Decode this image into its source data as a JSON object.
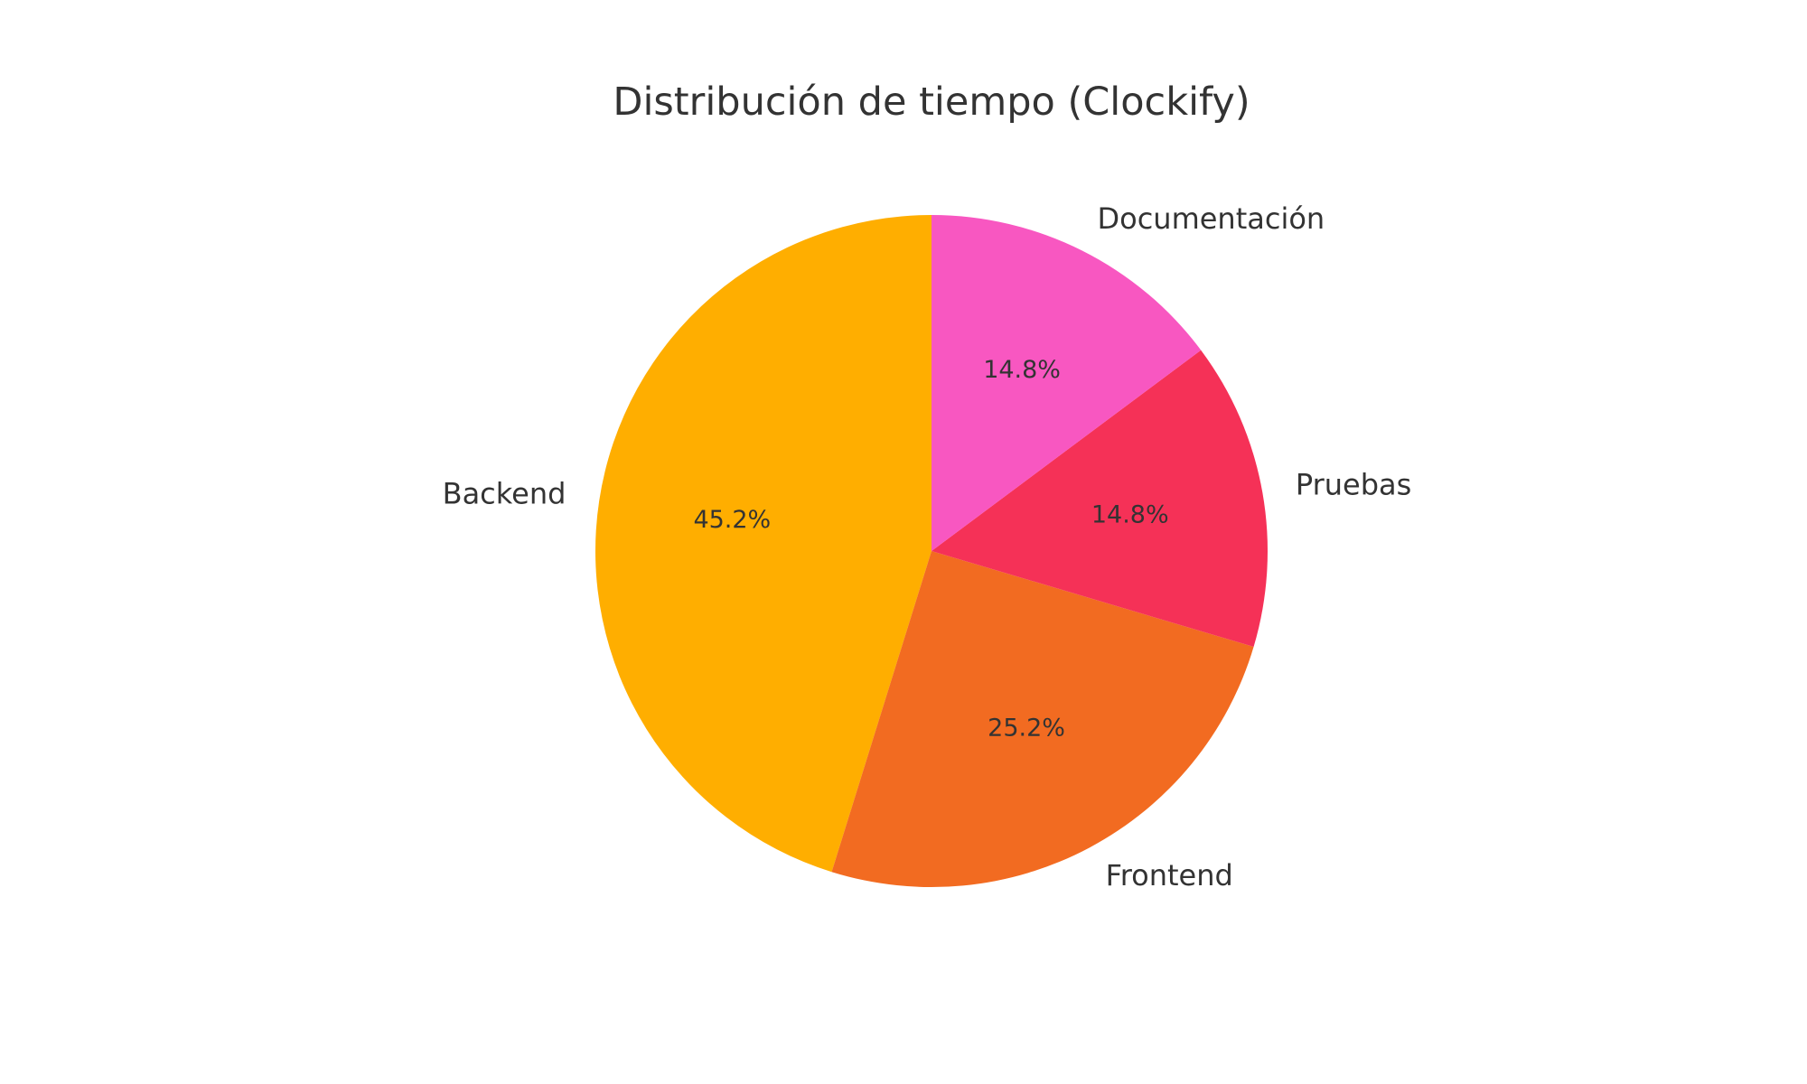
{
  "chart_data": {
    "type": "pie",
    "title": "Distribución de tiempo (Clockify)",
    "start_angle": 90,
    "direction": "counterclockwise",
    "slices": [
      {
        "label": "Backend",
        "value": 45.2,
        "pct_label": "45.2%",
        "color": "#FFAE00"
      },
      {
        "label": "Frontend",
        "value": 25.2,
        "pct_label": "25.2%",
        "color": "#F26B21"
      },
      {
        "label": "Pruebas",
        "value": 14.8,
        "pct_label": "14.8%",
        "color": "#F53157"
      },
      {
        "label": "Documentación",
        "value": 14.8,
        "pct_label": "14.8%",
        "color": "#F857C1"
      }
    ]
  }
}
